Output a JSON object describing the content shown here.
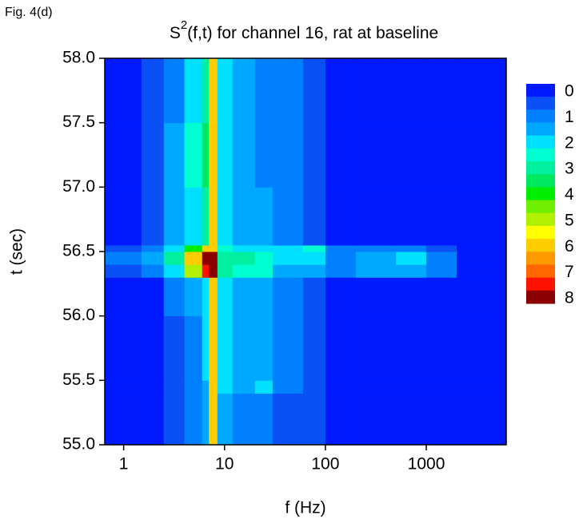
{
  "chart_data": {
    "type": "heatmap",
    "figure_label": "Fig. 4(d)",
    "title": [
      "S",
      "2",
      "(f,t) for channel 16, rat at baseline"
    ],
    "xlabel": "f (Hz)",
    "ylabel": "t (sec)",
    "xscale": "log",
    "xlim": [
      0.65,
      6200
    ],
    "xticks": [
      1,
      10,
      100,
      1000
    ],
    "ylim": [
      55,
      58
    ],
    "yticks": [
      {
        "value": 55,
        "label": "55.0"
      },
      {
        "value": 55.5,
        "label": "55.5"
      },
      {
        "value": 56,
        "label": "56.0"
      },
      {
        "value": 56.5,
        "label": "56.5"
      },
      {
        "value": 57,
        "label": "57.0"
      },
      {
        "value": 57.5,
        "label": "57.5"
      },
      {
        "value": 58,
        "label": "58.0"
      }
    ],
    "x": [
      0.65,
      1.5,
      2.5,
      4,
      6,
      7,
      8.5,
      12,
      20,
      30,
      60,
      100,
      200,
      500,
      1000,
      2000,
      6200
    ],
    "y": [
      55.0,
      55.4,
      55.5,
      56.0,
      56.3,
      56.4,
      56.5,
      56.55,
      57.0,
      57.5,
      58.0
    ],
    "z": [
      [
        0,
        0,
        0.5,
        1,
        1.5,
        6,
        1.5,
        1,
        1,
        0.5,
        0.5,
        0,
        0,
        0,
        0,
        0
      ],
      [
        0,
        0,
        0.5,
        1,
        1.5,
        6,
        2,
        1.5,
        2,
        1,
        0.5,
        0,
        0,
        0,
        0,
        0
      ],
      [
        0,
        0,
        0.5,
        1,
        2,
        6,
        2,
        1.5,
        1.5,
        1,
        0.5,
        0,
        0,
        0,
        0,
        0
      ],
      [
        0,
        0,
        1,
        1.5,
        2,
        6,
        2,
        1.5,
        1.5,
        1,
        0.5,
        0,
        0,
        0,
        0,
        0
      ],
      [
        0.5,
        1,
        2,
        5,
        7.5,
        8,
        3,
        2.5,
        2.5,
        1.5,
        1.5,
        1,
        1.5,
        1.5,
        1,
        0
      ],
      [
        1,
        1.5,
        3,
        6,
        8,
        8,
        3,
        3,
        2.5,
        2,
        2,
        1,
        1.5,
        2,
        1,
        0
      ],
      [
        0.5,
        1,
        2,
        4,
        6,
        6,
        2.5,
        2,
        2,
        2,
        2.5,
        1,
        1,
        1,
        0.5,
        0
      ],
      [
        0,
        0.5,
        1.5,
        2,
        3,
        6,
        2,
        1.5,
        1.5,
        1,
        0.5,
        0,
        0,
        0,
        0,
        0
      ],
      [
        0,
        0.5,
        1.5,
        2.5,
        3.5,
        6,
        2,
        1.5,
        1,
        1,
        0.5,
        0,
        0,
        0,
        0,
        0
      ],
      [
        0,
        0.5,
        1,
        2,
        3,
        6,
        2,
        1.5,
        1,
        1,
        0.5,
        0,
        0,
        0,
        0,
        0
      ]
    ],
    "colorbar_ticks": [
      0,
      1,
      2,
      3,
      4,
      5,
      6,
      7,
      8
    ],
    "colors": [
      "#0019ff",
      "#0a50f5",
      "#0080ff",
      "#00a8ff",
      "#00e0ff",
      "#00ffd0",
      "#00f0a0",
      "#00e860",
      "#00ee00",
      "#70f000",
      "#b0f000",
      "#ffff00",
      "#ffcc00",
      "#ff9900",
      "#ff6600",
      "#ff1100",
      "#8b0000"
    ]
  }
}
